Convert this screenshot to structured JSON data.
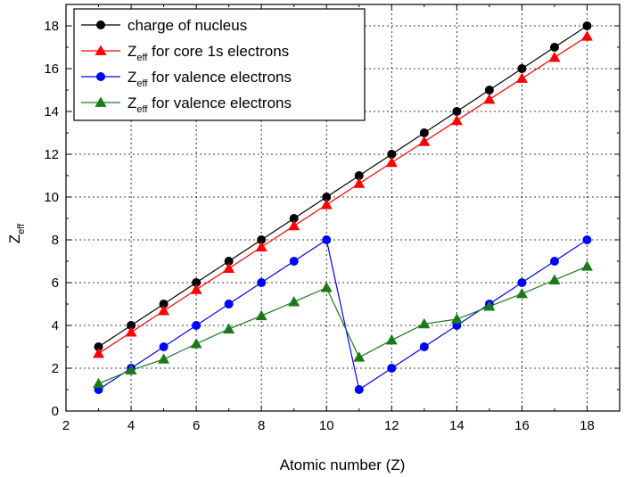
{
  "chart_data": {
    "type": "line",
    "title": "",
    "xlabel": "Atomic number (Z)",
    "ylabel": "Z",
    "ylabel_subscript": "eff",
    "xlim": [
      2,
      19
    ],
    "ylim": [
      0,
      19
    ],
    "xticks": [
      2,
      4,
      6,
      8,
      10,
      12,
      14,
      16,
      18
    ],
    "yticks": [
      0,
      2,
      4,
      6,
      8,
      10,
      12,
      14,
      16,
      18
    ],
    "grid": true,
    "legend_position": "top-left",
    "x": [
      3,
      4,
      5,
      6,
      7,
      8,
      9,
      10,
      11,
      12,
      13,
      14,
      15,
      16,
      17,
      18
    ],
    "series": [
      {
        "name": "charge of nucleus",
        "legend_prefix": "",
        "legend_subscript": "",
        "legend_suffix": "charge of nucleus",
        "color": "#000000",
        "marker": "circle",
        "values": [
          3,
          4,
          5,
          6,
          7,
          8,
          9,
          10,
          11,
          12,
          13,
          14,
          15,
          16,
          17,
          18
        ]
      },
      {
        "name": "Zeff for core 1s electrons",
        "legend_prefix": "Z",
        "legend_subscript": "eff",
        "legend_suffix": " for core 1s electrons",
        "color": "#ff0000",
        "marker": "triangle",
        "values": [
          2.69,
          3.68,
          4.68,
          5.67,
          6.66,
          7.66,
          8.65,
          9.64,
          10.63,
          11.61,
          12.59,
          13.57,
          14.56,
          15.54,
          16.52,
          17.51
        ]
      },
      {
        "name": "Zeff for valence electrons",
        "legend_prefix": "Z",
        "legend_subscript": "eff",
        "legend_suffix": " for valence electrons",
        "color": "#0000ff",
        "marker": "circle",
        "values": [
          1,
          2,
          3,
          4,
          5,
          6,
          7,
          8,
          1,
          2,
          3,
          4,
          5,
          6,
          7,
          8
        ]
      },
      {
        "name": "Zeff for valence electrons",
        "legend_prefix": "Z",
        "legend_subscript": "eff",
        "legend_suffix": " for valence electrons",
        "color": "#1a7a1a",
        "marker": "triangle",
        "values": [
          1.28,
          1.91,
          2.42,
          3.14,
          3.83,
          4.45,
          5.1,
          5.76,
          2.51,
          3.31,
          4.07,
          4.29,
          4.89,
          5.48,
          6.12,
          6.76
        ]
      }
    ]
  }
}
